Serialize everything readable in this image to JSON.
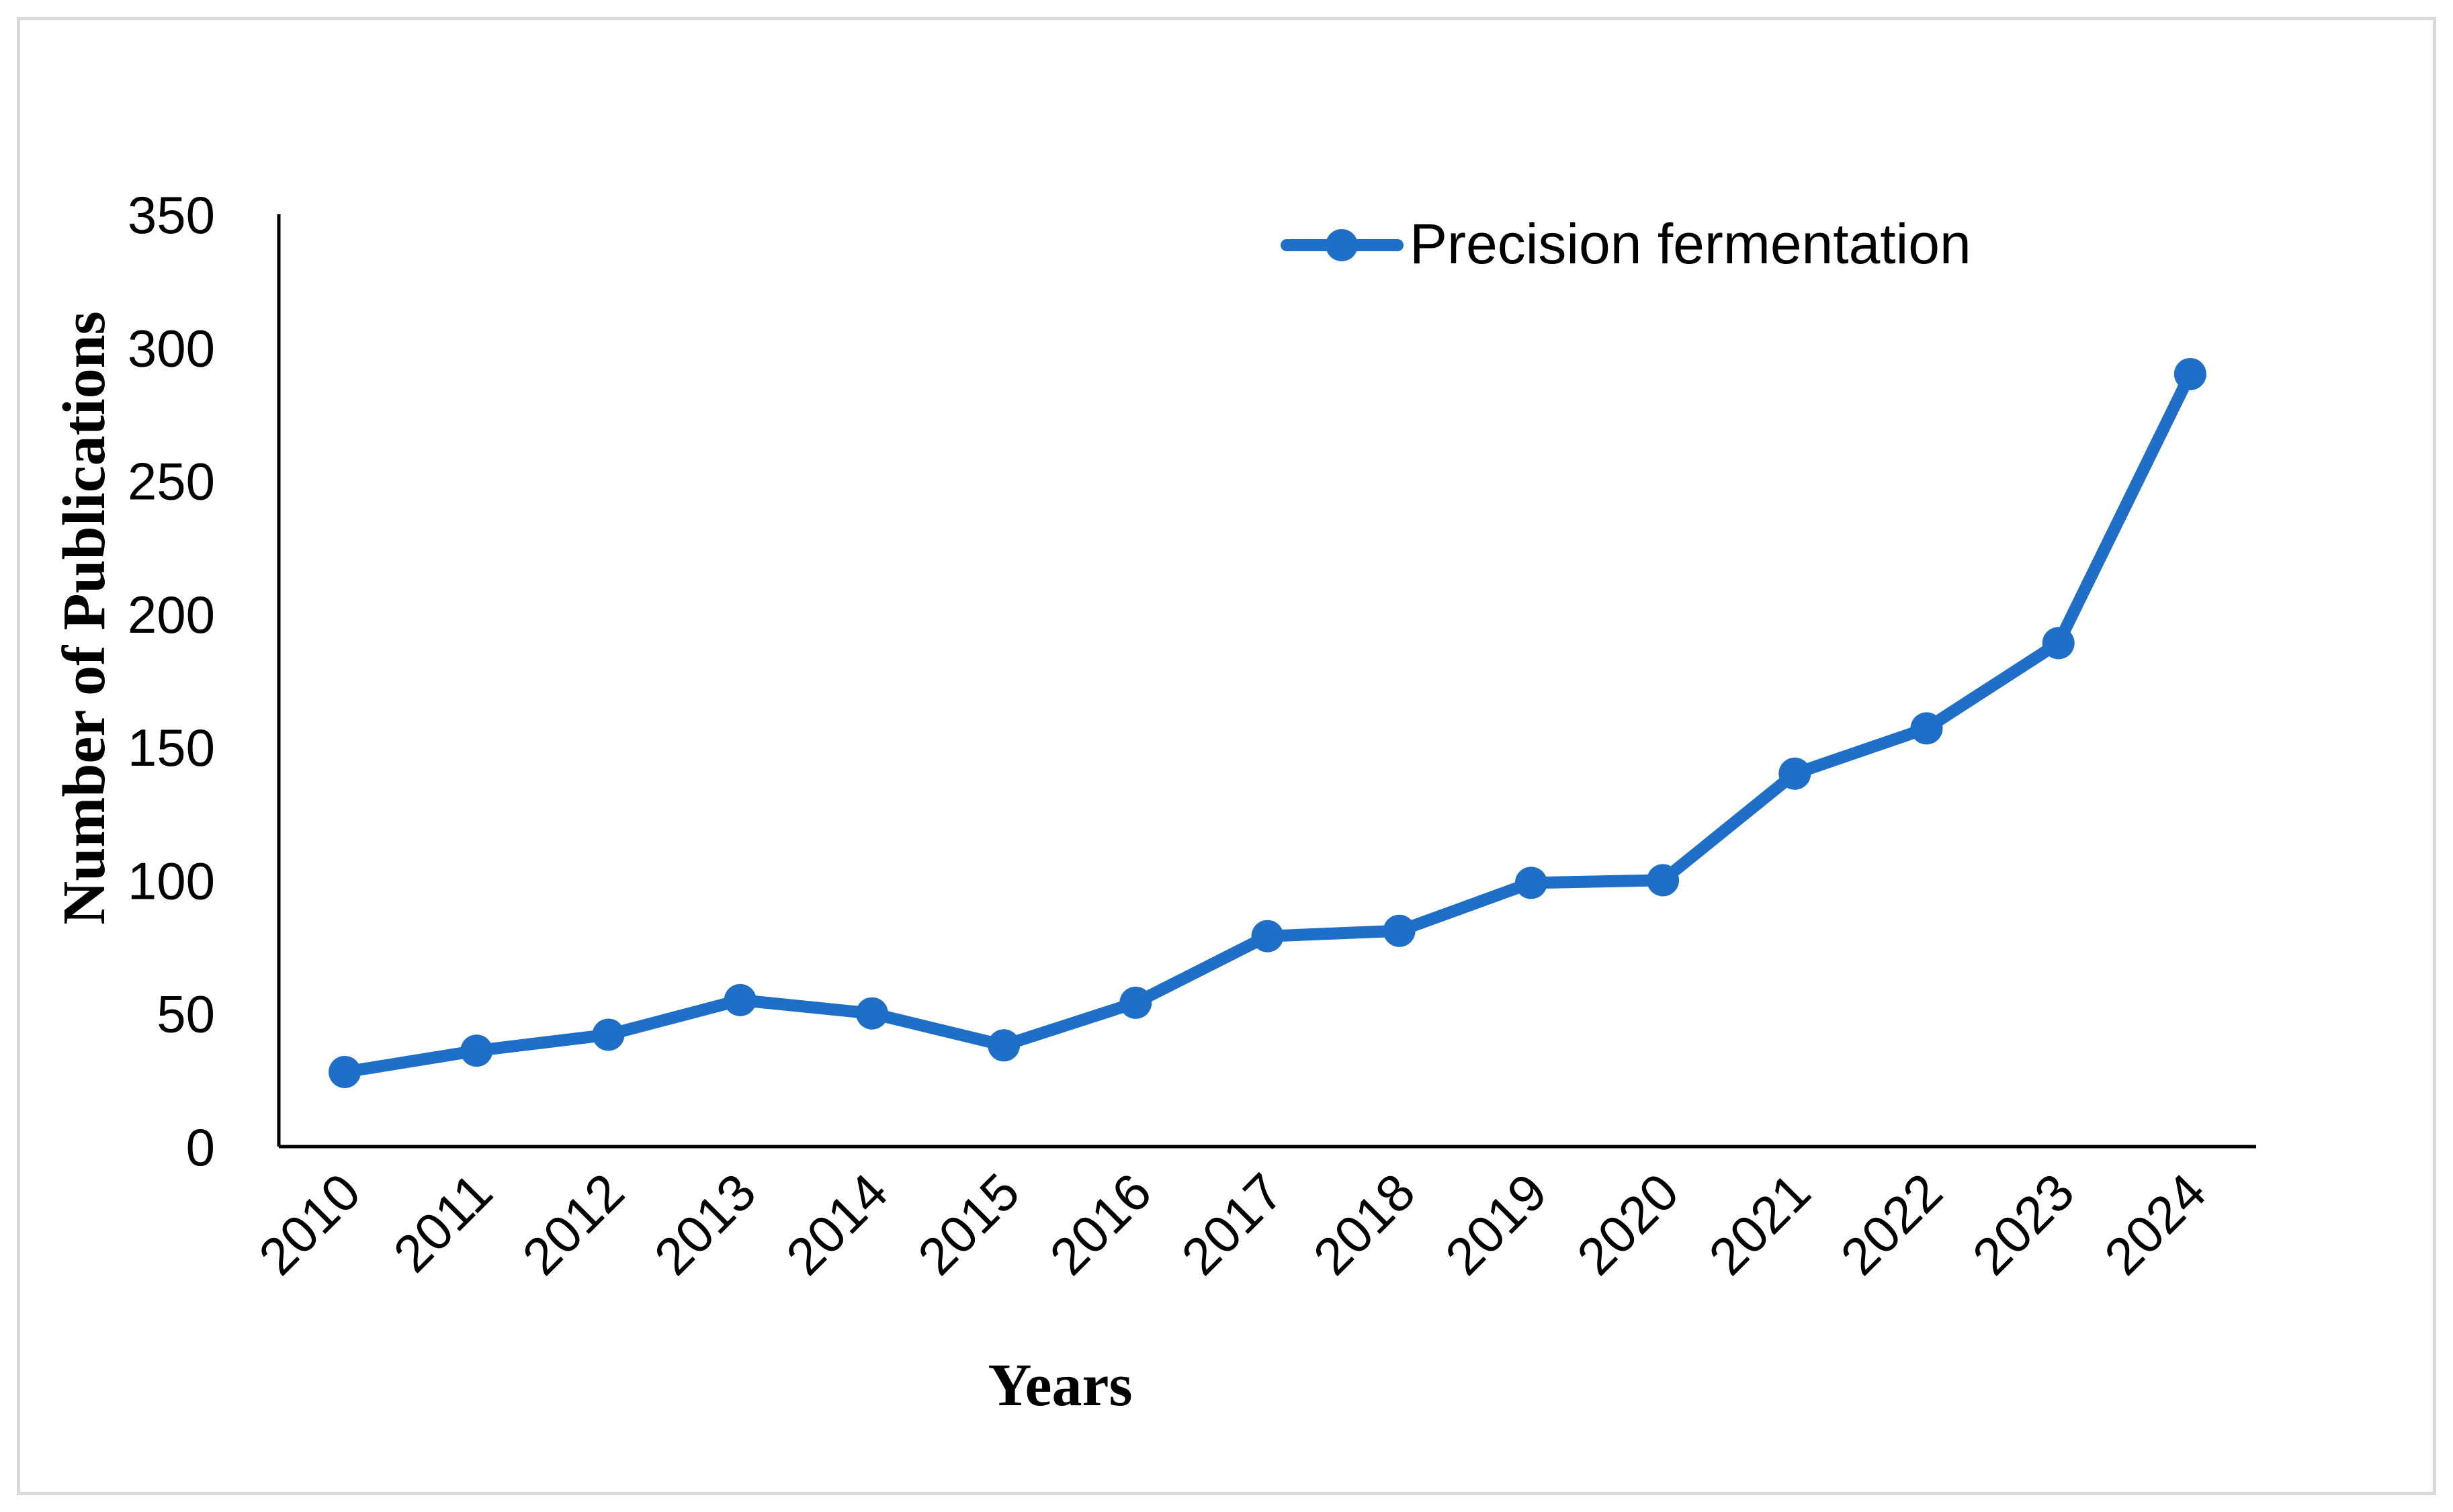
{
  "chart_data": {
    "type": "line",
    "title": "",
    "xlabel": "Years",
    "ylabel": "Number of Publications",
    "categories": [
      "2010",
      "2011",
      "2012",
      "2013",
      "2014",
      "2015",
      "2016",
      "2017",
      "2018",
      "2019",
      "2020",
      "2021",
      "2022",
      "2023",
      "2024"
    ],
    "series": [
      {
        "name": "Precision fermentation",
        "color": "#1f6fc8",
        "values": [
          28,
          36,
          42,
          55,
          50,
          38,
          54,
          79,
          81,
          99,
          100,
          140,
          157,
          189,
          290
        ]
      }
    ],
    "ylim": [
      0,
      350
    ],
    "yticks": [
      0,
      50,
      100,
      150,
      200,
      250,
      300,
      350
    ],
    "grid": false,
    "legend_position": "top-right"
  }
}
